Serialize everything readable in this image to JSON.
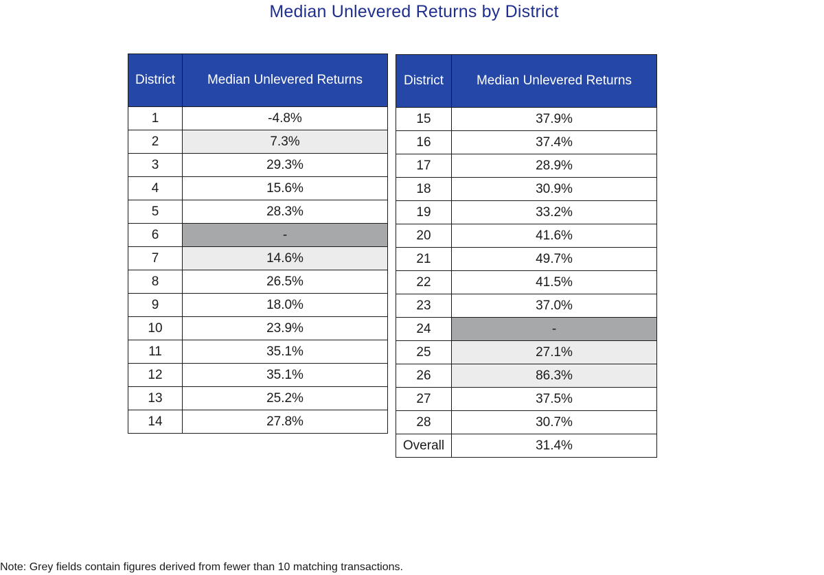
{
  "title": "Median Unlevered Returns by District",
  "note": "Note: Grey fields contain figures derived from fewer than 10 matching transactions.",
  "chart_data": {
    "type": "table",
    "title": "Median Unlevered Returns by District",
    "columns": [
      "District",
      "Median Unlevered Returns"
    ],
    "tables": [
      {
        "rows": [
          {
            "district": "1",
            "value": "-4.8%",
            "shade": "none"
          },
          {
            "district": "2",
            "value": "7.3%",
            "shade": "light"
          },
          {
            "district": "3",
            "value": "29.3%",
            "shade": "none"
          },
          {
            "district": "4",
            "value": "15.6%",
            "shade": "none"
          },
          {
            "district": "5",
            "value": "28.3%",
            "shade": "none"
          },
          {
            "district": "6",
            "value": "-",
            "shade": "dark"
          },
          {
            "district": "7",
            "value": "14.6%",
            "shade": "light"
          },
          {
            "district": "8",
            "value": "26.5%",
            "shade": "none"
          },
          {
            "district": "9",
            "value": "18.0%",
            "shade": "none"
          },
          {
            "district": "10",
            "value": "23.9%",
            "shade": "none"
          },
          {
            "district": "11",
            "value": "35.1%",
            "shade": "none"
          },
          {
            "district": "12",
            "value": "35.1%",
            "shade": "none"
          },
          {
            "district": "13",
            "value": "25.2%",
            "shade": "none"
          },
          {
            "district": "14",
            "value": "27.8%",
            "shade": "none"
          }
        ]
      },
      {
        "rows": [
          {
            "district": "15",
            "value": "37.9%",
            "shade": "none"
          },
          {
            "district": "16",
            "value": "37.4%",
            "shade": "none"
          },
          {
            "district": "17",
            "value": "28.9%",
            "shade": "none"
          },
          {
            "district": "18",
            "value": "30.9%",
            "shade": "none"
          },
          {
            "district": "19",
            "value": "33.2%",
            "shade": "none"
          },
          {
            "district": "20",
            "value": "41.6%",
            "shade": "none"
          },
          {
            "district": "21",
            "value": "49.7%",
            "shade": "none"
          },
          {
            "district": "22",
            "value": "41.5%",
            "shade": "none"
          },
          {
            "district": "23",
            "value": "37.0%",
            "shade": "none"
          },
          {
            "district": "24",
            "value": "-",
            "shade": "dark"
          },
          {
            "district": "25",
            "value": "27.1%",
            "shade": "light"
          },
          {
            "district": "26",
            "value": "86.3%",
            "shade": "light"
          },
          {
            "district": "27",
            "value": "37.5%",
            "shade": "none"
          },
          {
            "district": "28",
            "value": "30.7%",
            "shade": "none"
          },
          {
            "district": "Overall",
            "value": "31.4%",
            "shade": "none"
          }
        ]
      }
    ],
    "colors": {
      "header": "#2548a8",
      "title": "#1f2f8f",
      "light_grey": "#ececec",
      "dark_grey": "#a7a8aa"
    }
  }
}
